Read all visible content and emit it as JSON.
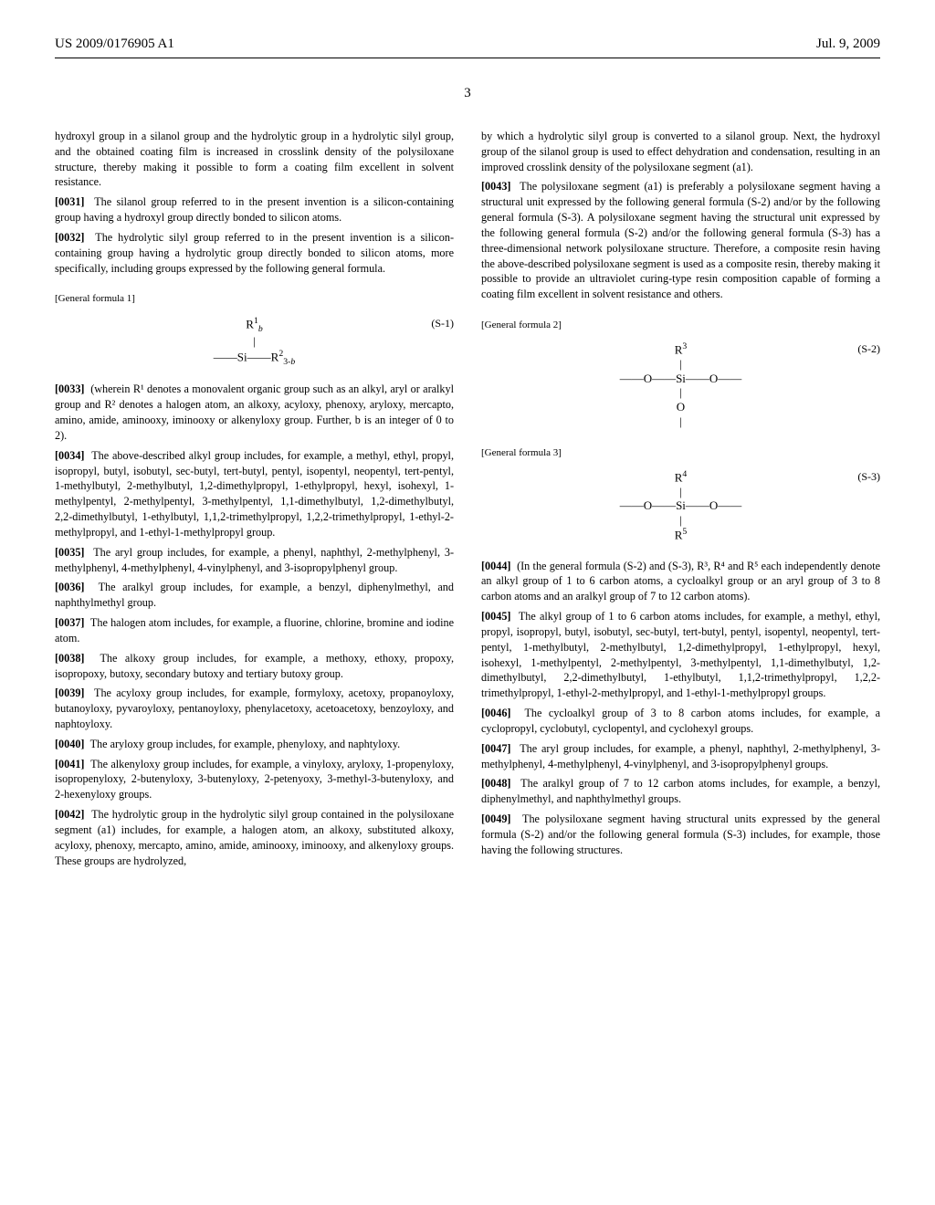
{
  "header": {
    "left": "US 2009/0176905 A1",
    "right": "Jul. 9, 2009"
  },
  "pageNumber": "3",
  "left": {
    "p0030_cont": "hydroxyl group in a silanol group and the hydrolytic group in a hydrolytic silyl group, and the obtained coating film is increased in crosslink density of the polysiloxane structure, thereby making it possible to form a coating film excellent in solvent resistance.",
    "p0031_num": "[0031]",
    "p0031": "The silanol group referred to in the present invention is a silicon-containing group having a hydroxyl group directly bonded to silicon atoms.",
    "p0032_num": "[0032]",
    "p0032": "The hydrolytic silyl group referred to in the present invention is a silicon-containing group having a hydrolytic group directly bonded to silicon atoms, more specifically, including groups expressed by the following general formula.",
    "gf1_label": "[General formula 1]",
    "gf1_num": "(S-1)",
    "p0033_num": "[0033]",
    "p0033": "(wherein R¹ denotes a monovalent organic group such as an alkyl, aryl or aralkyl group and R² denotes a halogen atom, an alkoxy, acyloxy, phenoxy, aryloxy, mercapto, amino, amide, aminooxy, iminooxy or alkenyloxy group. Further, b is an integer of 0 to 2).",
    "p0034_num": "[0034]",
    "p0034": "The above-described alkyl group includes, for example, a methyl, ethyl, propyl, isopropyl, butyl, isobutyl, sec-butyl, tert-butyl, pentyl, isopentyl, neopentyl, tert-pentyl, 1-methylbutyl, 2-methylbutyl, 1,2-dimethylpropyl, 1-ethylpropyl, hexyl, isohexyl, 1-methylpentyl, 2-methylpentyl, 3-methylpentyl, 1,1-dimethylbutyl, 1,2-dimethylbutyl, 2,2-dimethylbutyl, 1-ethylbutyl, 1,1,2-trimethylpropyl, 1,2,2-trimethylpropyl, 1-ethyl-2-methylpropyl, and 1-ethyl-1-methylpropyl group.",
    "p0035_num": "[0035]",
    "p0035": "The aryl group includes, for example, a phenyl, naphthyl, 2-methylphenyl, 3-methylphenyl, 4-methylphenyl, 4-vinylphenyl, and 3-isopropylphenyl group.",
    "p0036_num": "[0036]",
    "p0036": "The aralkyl group includes, for example, a benzyl, diphenylmethyl, and naphthylmethyl group.",
    "p0037_num": "[0037]",
    "p0037": "The halogen atom includes, for example, a fluorine, chlorine, bromine and iodine atom.",
    "p0038_num": "[0038]",
    "p0038": "The alkoxy group includes, for example, a methoxy, ethoxy, propoxy, isopropoxy, butoxy, secondary butoxy and tertiary butoxy group.",
    "p0039_num": "[0039]",
    "p0039": "The acyloxy group includes, for example, formyloxy, acetoxy, propanoyloxy, butanoyloxy, pyvaroyloxy, pentanoyloxy, phenylacetoxy, acetoacetoxy, benzoyloxy, and naphtoyloxy.",
    "p0040_num": "[0040]",
    "p0040": "The aryloxy group includes, for example, phenyloxy, and naphtyloxy.",
    "p0041_num": "[0041]",
    "p0041": "The alkenyloxy group includes, for example, a vinyloxy, aryloxy, 1-propenyloxy, isopropenyloxy, 2-butenyloxy, 3-butenyloxy, 2-petenyoxy, 3-methyl-3-butenyloxy, and 2-hexenyloxy groups.",
    "p0042_num": "[0042]",
    "p0042": "The hydrolytic group in the hydrolytic silyl group contained in the polysiloxane segment (a1) includes, for example, a halogen atom, an alkoxy, substituted alkoxy, acyloxy, phenoxy, mercapto, amino, amide, aminooxy, iminooxy, and alkenyloxy groups. These groups are hydrolyzed,"
  },
  "right": {
    "p0042_cont": "by which a hydrolytic silyl group is converted to a silanol group. Next, the hydroxyl group of the silanol group is used to effect dehydration and condensation, resulting in an improved crosslink density of the polysiloxane segment (a1).",
    "p0043_num": "[0043]",
    "p0043": "The polysiloxane segment (a1) is preferably a polysiloxane segment having a structural unit expressed by the following general formula (S-2) and/or by the following general formula (S-3). A polysiloxane segment having the structural unit expressed by the following general formula (S-2) and/or the following general formula (S-3) has a three-dimensional network polysiloxane structure. Therefore, a composite resin having the above-described polysiloxane segment is used as a composite resin, thereby making it possible to provide an ultraviolet curing-type resin composition capable of forming a coating film excellent in solvent resistance and others.",
    "gf2_label": "[General formula 2]",
    "gf2_num": "(S-2)",
    "gf3_label": "[General formula 3]",
    "gf3_num": "(S-3)",
    "p0044_num": "[0044]",
    "p0044": "(In the general formula (S-2) and (S-3), R³, R⁴ and R⁵ each independently denote an alkyl group of 1 to 6 carbon atoms, a cycloalkyl group or an aryl group of 3 to 8 carbon atoms and an aralkyl group of 7 to 12 carbon atoms).",
    "p0045_num": "[0045]",
    "p0045": "The alkyl group of 1 to 6 carbon atoms includes, for example, a methyl, ethyl, propyl, isopropyl, butyl, isobutyl, sec-butyl, tert-butyl, pentyl, isopentyl, neopentyl, tert-pentyl, 1-methylbutyl, 2-methylbutyl, 1,2-dimethylpropyl, 1-ethylpropyl, hexyl, isohexyl, 1-methylpentyl, 2-methylpentyl, 3-methylpentyl, 1,1-dimethylbutyl, 1,2-dimethylbutyl, 2,2-dimethylbutyl, 1-ethylbutyl, 1,1,2-trimethylpropyl, 1,2,2-trimethylpropyl, 1-ethyl-2-methylpropyl, and 1-ethyl-1-methylpropyl groups.",
    "p0046_num": "[0046]",
    "p0046": "The cycloalkyl group of 3 to 8 carbon atoms includes, for example, a cyclopropyl, cyclobutyl, cyclopentyl, and cyclohexyl groups.",
    "p0047_num": "[0047]",
    "p0047": "The aryl group includes, for example, a phenyl, naphthyl, 2-methylphenyl, 3-methylphenyl, 4-methylphenyl, 4-vinylphenyl, and 3-isopropylphenyl groups.",
    "p0048_num": "[0048]",
    "p0048": "The aralkyl group of 7 to 12 carbon atoms includes, for example, a benzyl, diphenylmethyl, and naphthylmethyl groups.",
    "p0049_num": "[0049]",
    "p0049": "The polysiloxane segment having structural units expressed by the general formula (S-2) and/or the following general formula (S-3) includes, for example, those having the following structures."
  }
}
